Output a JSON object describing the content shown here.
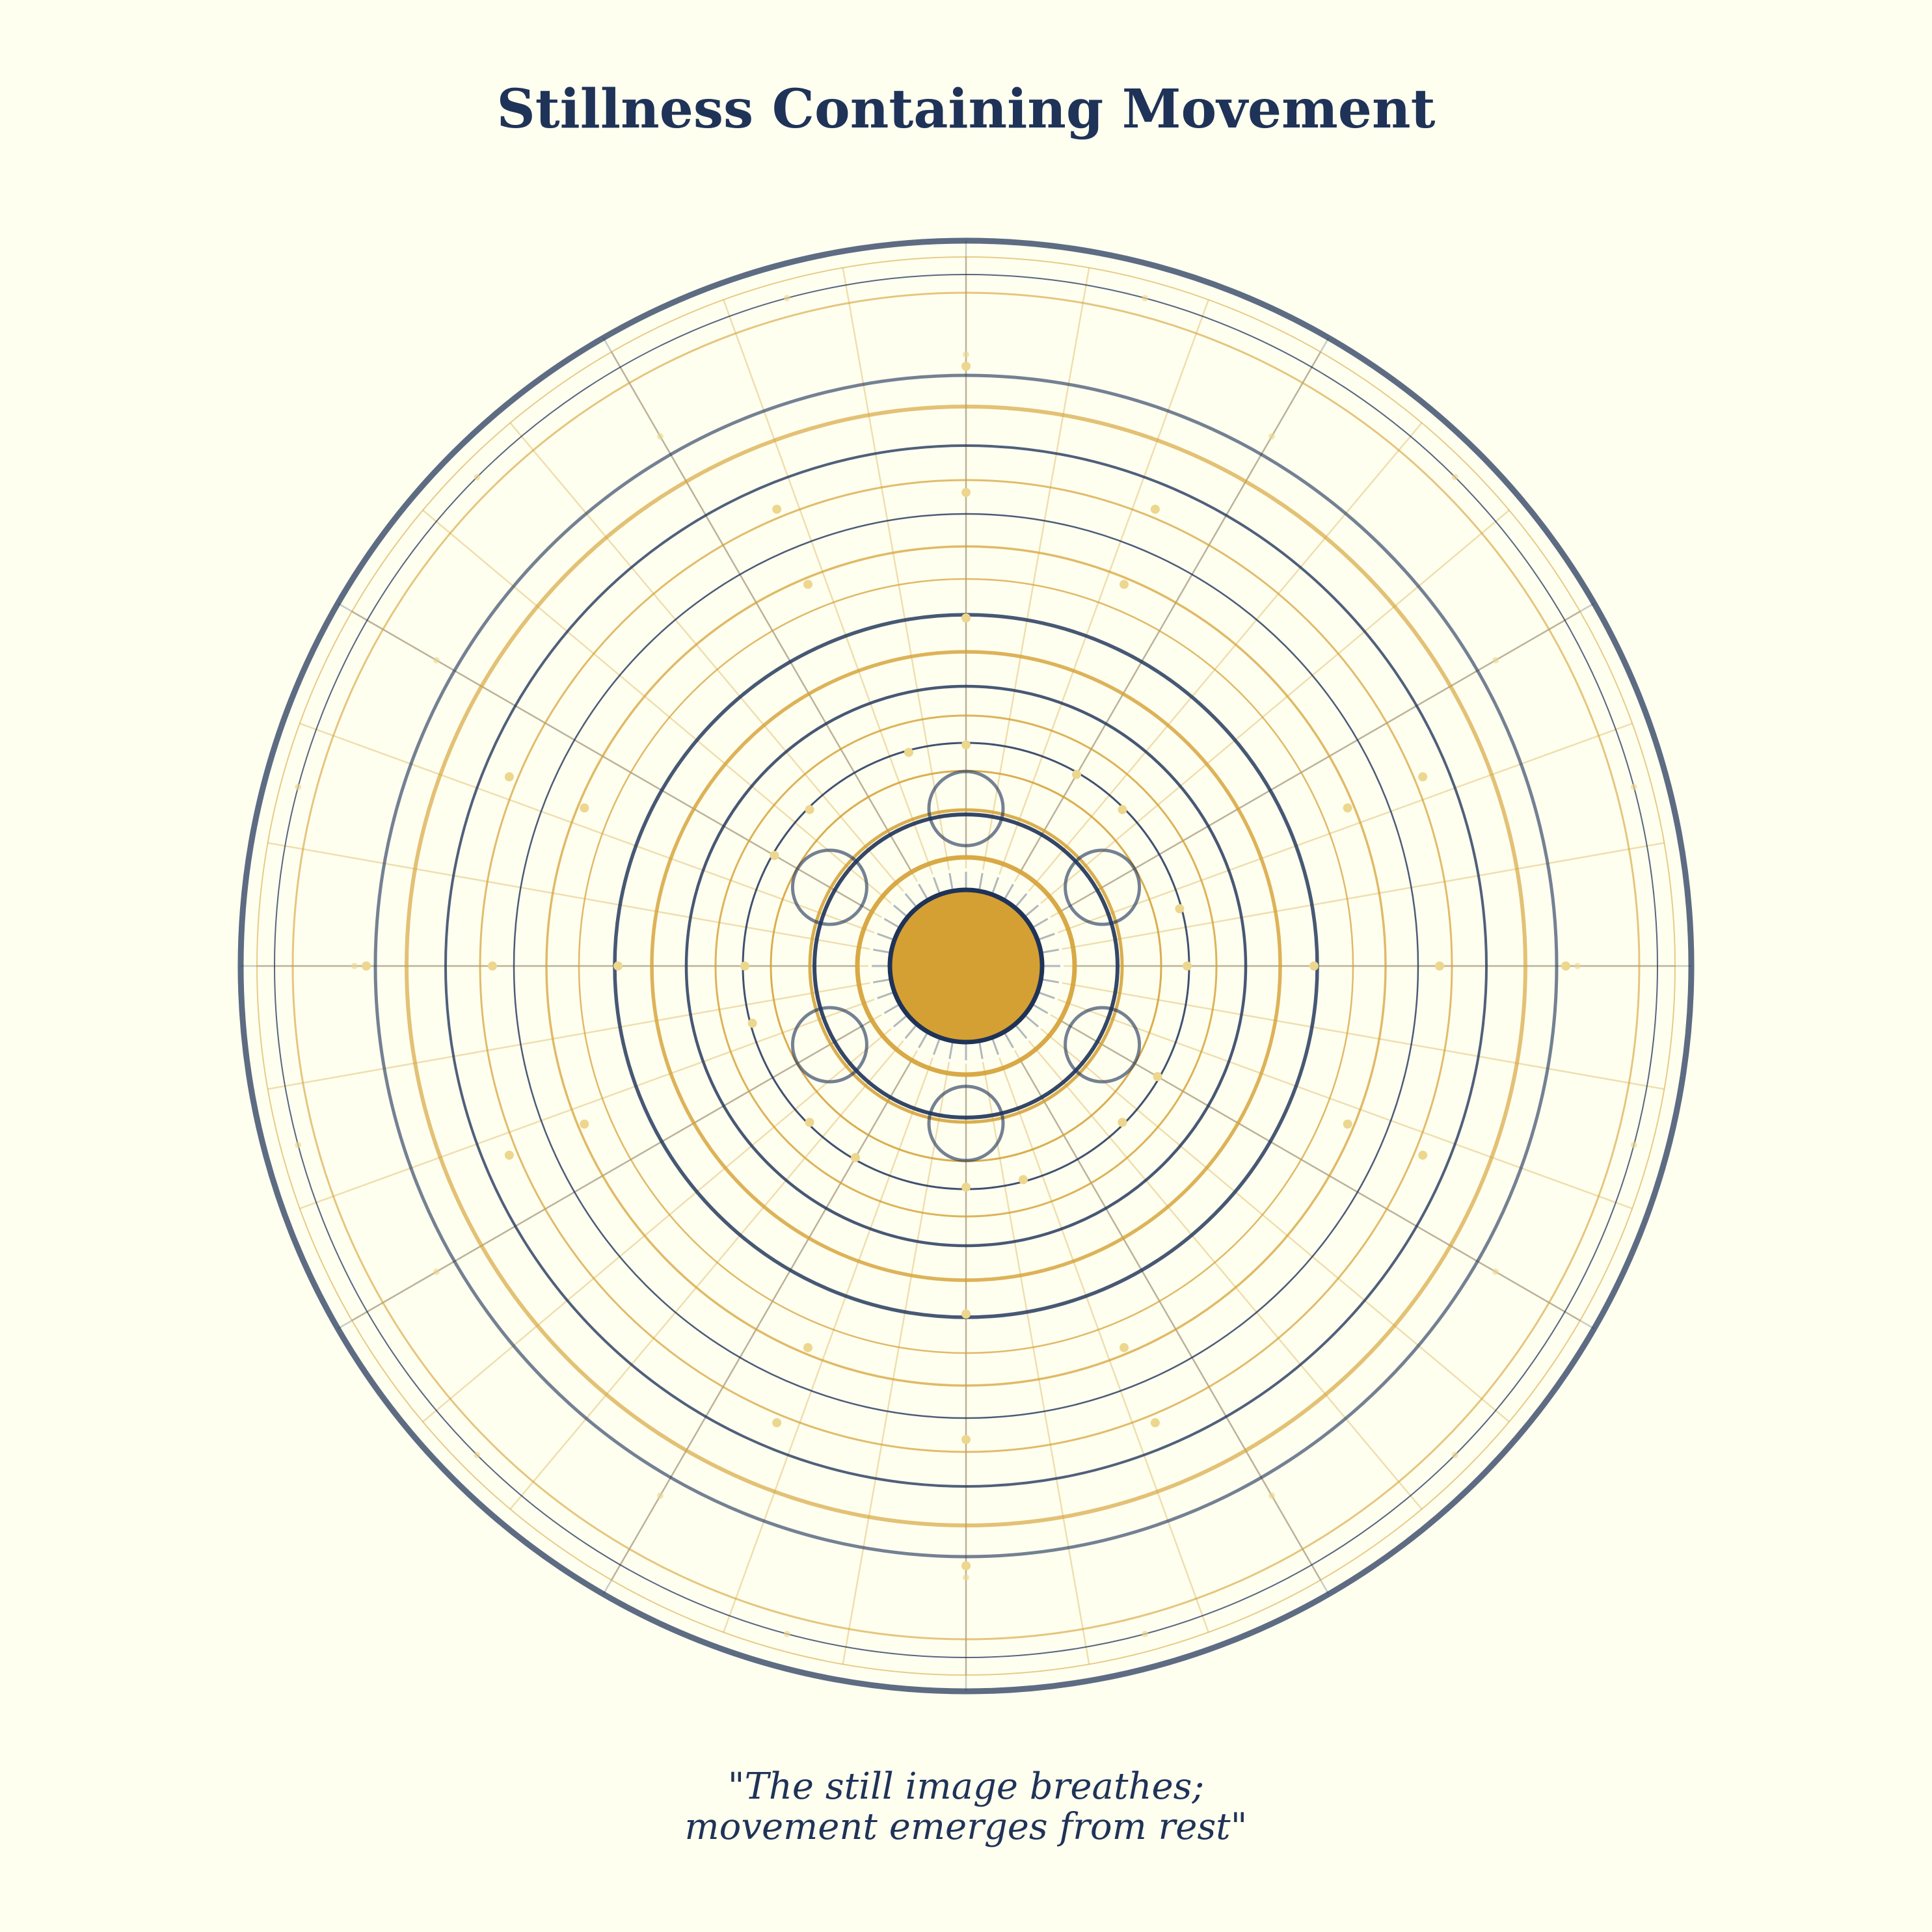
{
  "title": "Stillness Containing Movement",
  "caption": {
    "line1": "\"The still image breathes;",
    "line2": "movement emerges from rest\""
  },
  "colors": {
    "background": "#FFFFF0",
    "navy": "#1F3358",
    "gold": "#D4A033",
    "gold_light": "#E2C37A",
    "gold_dot": "#EDD68E"
  },
  "decoration": {
    "navy_spokes": 12,
    "gold_spokes": 36,
    "inner_tick_marks": 36,
    "orbiting_circles": 6,
    "dot_rings": [
      6,
      8,
      12,
      12,
      16,
      16,
      24
    ]
  }
}
